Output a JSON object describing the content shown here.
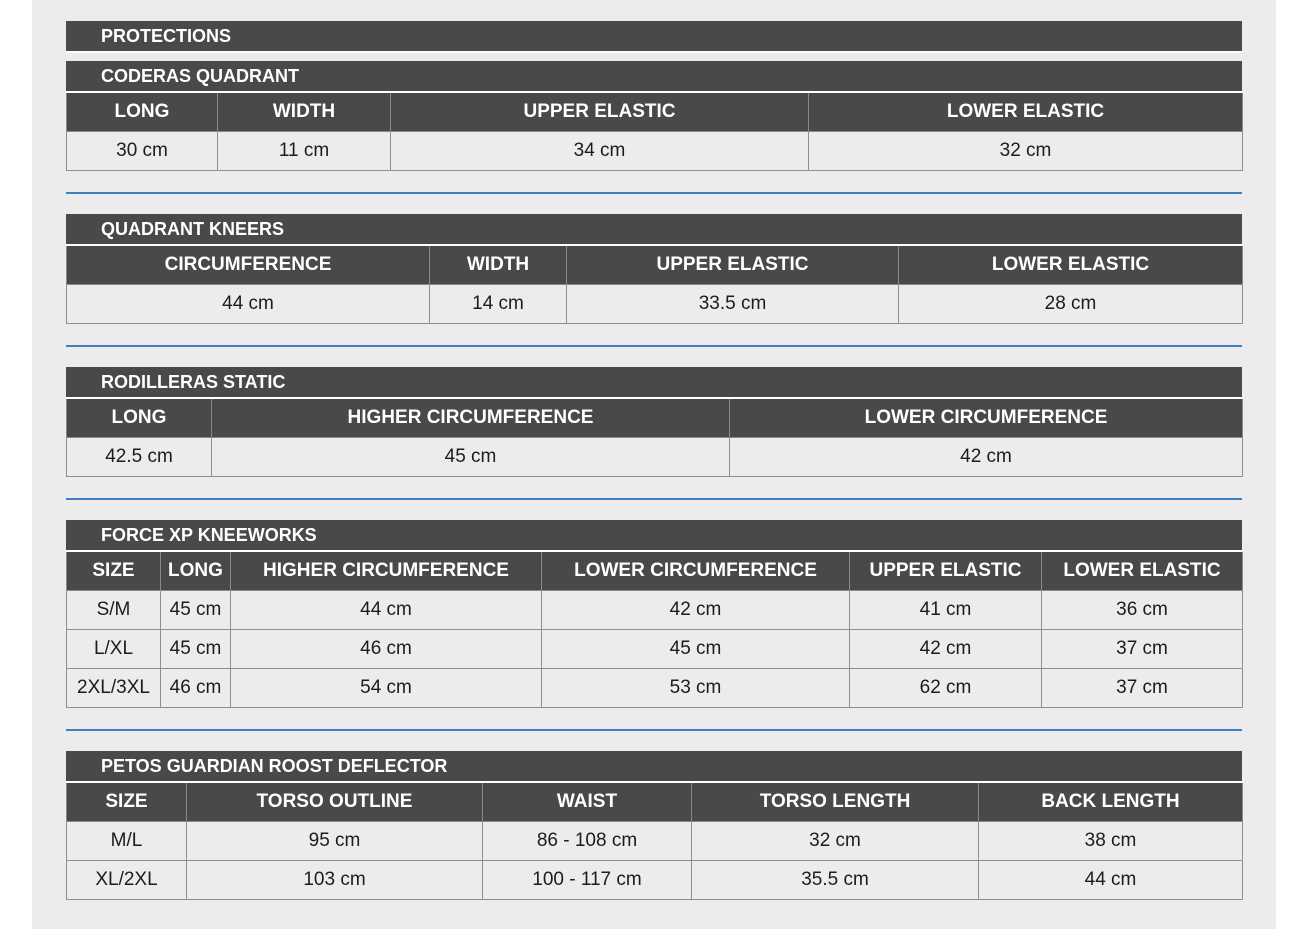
{
  "main_title": "PROTECTIONS",
  "colors": {
    "header_bg": "#4a4947",
    "separator": "#3d7fc0",
    "panel_bg": "#ececec"
  },
  "tables": [
    {
      "title": "CODERAS QUADRANT",
      "headers": [
        "LONG",
        "WIDTH",
        "UPPER ELASTIC",
        "LOWER ELASTIC"
      ],
      "rows": [
        [
          "30 cm",
          "11 cm",
          "34 cm",
          "32 cm"
        ]
      ]
    },
    {
      "title": "QUADRANT KNEERS",
      "headers": [
        "CIRCUMFERENCE",
        "WIDTH",
        "UPPER ELASTIC",
        "LOWER ELASTIC"
      ],
      "rows": [
        [
          "44 cm",
          "14 cm",
          "33.5 cm",
          "28 cm"
        ]
      ]
    },
    {
      "title": "RODILLERAS STATIC",
      "headers": [
        "LONG",
        "HIGHER CIRCUMFERENCE",
        "LOWER CIRCUMFERENCE"
      ],
      "rows": [
        [
          "42.5 cm",
          "45 cm",
          "42 cm"
        ]
      ]
    },
    {
      "title": "FORCE XP KNEEWORKS",
      "headers": [
        "SIZE",
        "LONG",
        "HIGHER CIRCUMFERENCE",
        "LOWER CIRCUMFERENCE",
        "UPPER ELASTIC",
        "LOWER ELASTIC"
      ],
      "rows": [
        [
          "S/M",
          "45 cm",
          "44 cm",
          "42 cm",
          "41 cm",
          "36 cm"
        ],
        [
          "L/XL",
          "45 cm",
          "46 cm",
          "45 cm",
          "42 cm",
          "37 cm"
        ],
        [
          "2XL/3XL",
          "46 cm",
          "54 cm",
          "53 cm",
          "62 cm",
          "37 cm"
        ]
      ]
    },
    {
      "title": "PETOS GUARDIAN ROOST DEFLECTOR",
      "headers": [
        "SIZE",
        "TORSO OUTLINE",
        "WAIST",
        "TORSO LENGTH",
        "BACK LENGTH"
      ],
      "rows": [
        [
          "M/L",
          "95 cm",
          "86 - 108 cm",
          "32 cm",
          "38 cm"
        ],
        [
          "XL/2XL",
          "103 cm",
          "100 - 117 cm",
          "35.5 cm",
          "44 cm"
        ]
      ]
    }
  ]
}
